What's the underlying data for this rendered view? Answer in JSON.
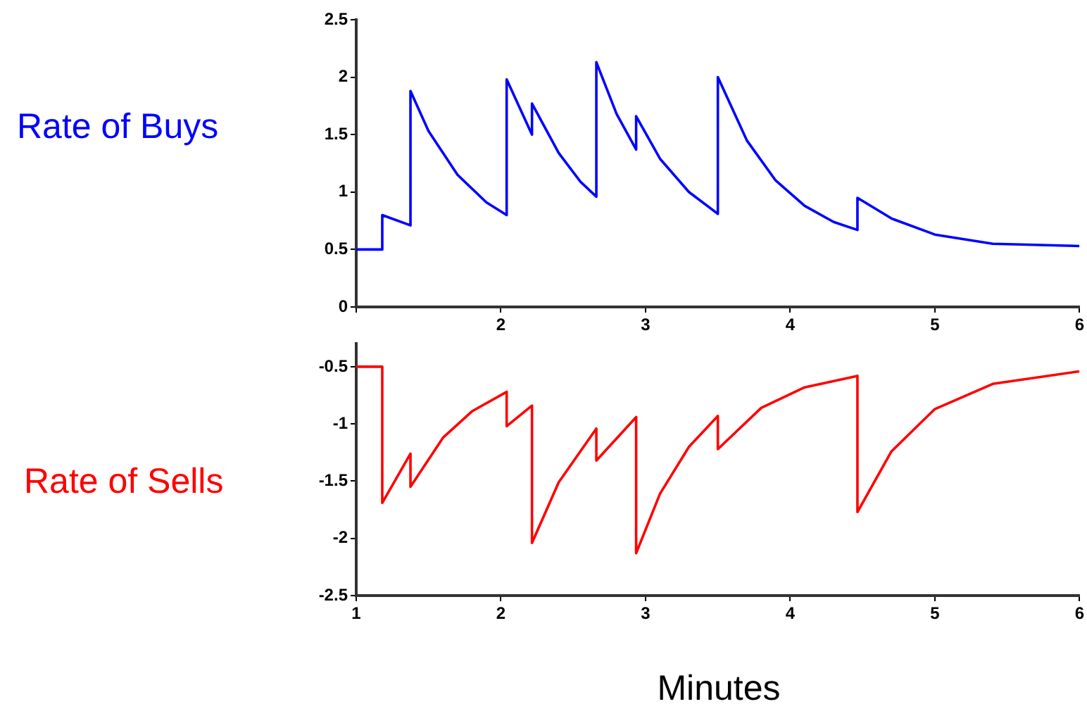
{
  "chart_data": [
    {
      "type": "line",
      "ylabel": "Rate of Buys",
      "xlim": [
        1,
        6
      ],
      "xticks": [
        {
          "value": 1,
          "label": null
        },
        2,
        3,
        4,
        5,
        6
      ],
      "ylim": [
        0,
        2.5
      ],
      "yticks": [
        0,
        0.5,
        1,
        1.5,
        2,
        2.5
      ],
      "grid": false,
      "marker": "none",
      "line_style": "solid",
      "series": [
        {
          "color": "#0000ff",
          "x": [
            1,
            1.18,
            1.18,
            1.375,
            1.375,
            1.5,
            1.7,
            1.9,
            2.04,
            2.04,
            2.215,
            2.215,
            2.4,
            2.55,
            2.66,
            2.66,
            2.8,
            2.935,
            2.935,
            3.1,
            3.3,
            3.5,
            3.5,
            3.7,
            3.9,
            4.1,
            4.3,
            4.465,
            4.465,
            4.7,
            5.0,
            5.4,
            6
          ],
          "values": [
            0.5,
            0.5,
            0.8,
            0.71,
            1.88,
            1.53,
            1.15,
            0.91,
            0.8,
            1.98,
            1.5,
            1.77,
            1.34,
            1.09,
            0.96,
            2.13,
            1.68,
            1.37,
            1.66,
            1.29,
            1.0,
            0.81,
            2.0,
            1.45,
            1.1,
            0.88,
            0.74,
            0.67,
            0.95,
            0.77,
            0.63,
            0.55,
            0.53
          ]
        }
      ]
    },
    {
      "type": "line",
      "ylabel": "Rate of Sells",
      "xlabel": "Minutes",
      "xlim": [
        1,
        6
      ],
      "xticks": [
        1,
        2,
        3,
        4,
        5,
        6
      ],
      "ylim": [
        -2.5,
        -0.3
      ],
      "yticks": [
        -2.5,
        -2,
        -1.5,
        -1,
        -0.5
      ],
      "grid": false,
      "marker": "none",
      "line_style": "solid",
      "series": [
        {
          "color": "#ff0000",
          "x": [
            1,
            1.18,
            1.18,
            1.375,
            1.375,
            1.6,
            1.8,
            2.04,
            2.04,
            2.215,
            2.215,
            2.4,
            2.66,
            2.66,
            2.935,
            2.935,
            3.1,
            3.3,
            3.5,
            3.5,
            3.8,
            4.1,
            4.465,
            4.465,
            4.7,
            5.0,
            5.4,
            6
          ],
          "values": [
            -0.5,
            -0.5,
            -1.69,
            -1.26,
            -1.55,
            -1.12,
            -0.89,
            -0.72,
            -1.02,
            -0.84,
            -2.04,
            -1.51,
            -1.04,
            -1.32,
            -0.94,
            -2.13,
            -1.61,
            -1.2,
            -0.93,
            -1.22,
            -0.86,
            -0.68,
            -0.58,
            -1.77,
            -1.24,
            -0.87,
            -0.65,
            -0.54
          ]
        }
      ]
    }
  ]
}
